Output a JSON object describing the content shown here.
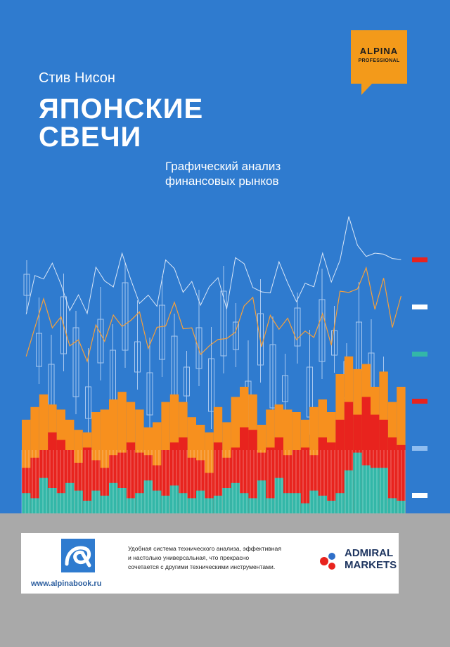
{
  "book": {
    "author": "Стив Нисон",
    "title_line1": "ЯПОНСКИЕ",
    "title_line2": "СВЕЧИ",
    "subtitle_line1": "Графический анализ",
    "subtitle_line2": "финансовых рынков"
  },
  "publisher": {
    "badge_line1": "ALPINA",
    "badge_line2": "PROFESSIONAL",
    "url": "www.alpinabook.ru"
  },
  "footer": {
    "blurb_line1": "Удобная система технического анализа, эффективная",
    "blurb_line2": "и настолько универсальная, что прекрасно",
    "blurb_line3": "сочетается с другими техническими инструментами.",
    "partner_line1": "ADMIRAL",
    "partner_line2": "MARKETS"
  },
  "colors": {
    "background": "#2f7bcf",
    "orange": "#f7901e",
    "red": "#e8231e",
    "teal": "#33b7a8",
    "candle": "#a9c8ef",
    "badge": "#f39a1a"
  },
  "chart_data": {
    "type": "bar",
    "title": "",
    "xlabel": "",
    "ylabel": "",
    "ylim": [
      0,
      100
    ],
    "series": [
      {
        "name": "orange",
        "values": [
          37,
          42,
          47,
          43,
          41,
          37,
          33,
          32,
          40,
          41,
          45,
          48,
          44,
          41,
          34,
          36,
          44,
          47,
          44,
          38,
          35,
          32,
          42,
          36,
          46,
          50,
          47,
          35,
          41,
          43,
          41,
          40,
          37,
          42,
          45,
          40,
          55,
          62,
          57,
          59,
          50,
          56,
          44,
          50
        ]
      },
      {
        "name": "red",
        "values": [
          18,
          22,
          25,
          32,
          29,
          25,
          20,
          26,
          21,
          18,
          23,
          24,
          28,
          24,
          23,
          19,
          25,
          28,
          30,
          22,
          21,
          16,
          28,
          22,
          26,
          34,
          33,
          24,
          26,
          30,
          23,
          25,
          26,
          23,
          30,
          28,
          37,
          44,
          39,
          46,
          39,
          37,
          30,
          27
        ]
      },
      {
        "name": "teal",
        "values": [
          8,
          6,
          14,
          10,
          8,
          12,
          9,
          5,
          9,
          7,
          12,
          10,
          6,
          8,
          13,
          9,
          7,
          11,
          8,
          6,
          9,
          6,
          7,
          10,
          12,
          8,
          6,
          13,
          6,
          14,
          8,
          8,
          4,
          9,
          7,
          5,
          8,
          17,
          24,
          19,
          18,
          18,
          6,
          5
        ]
      }
    ],
    "candles": {
      "count": 30
    },
    "scale_marks": [
      "red",
      "white",
      "teal",
      "red",
      "light-blue",
      "white"
    ]
  }
}
